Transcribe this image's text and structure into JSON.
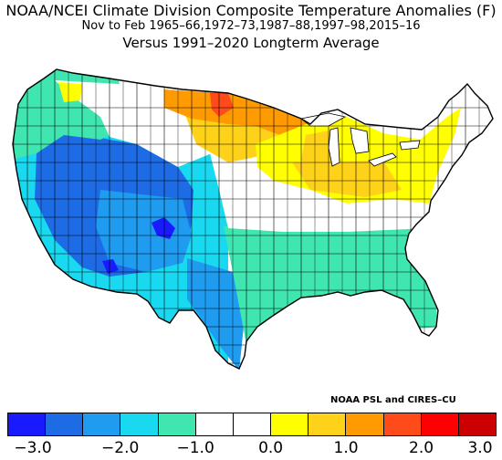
{
  "title": {
    "line1": "NOAA/NCEI Climate Division Composite Temperature Anomalies (F)",
    "line2": "Nov to Feb  1965–66,1972–73,1987–88,1997–98,2015–16",
    "line3": "Versus 1991–2020 Longterm Average"
  },
  "credit": "NOAA PSL and CIRES–CU",
  "legend": {
    "colors": [
      "#1a1aff",
      "#1e6be6",
      "#1f9bf0",
      "#19d9f0",
      "#40e6b0",
      "#ffffff",
      "#ffffff",
      "#ffff00",
      "#ffd21a",
      "#ff9a00",
      "#ff4a1a",
      "#ff0000",
      "#cc0000"
    ],
    "ticks": [
      "−3.0",
      "−2.0",
      "−1.0",
      "0.0",
      "1.0",
      "2.0",
      "3.0"
    ]
  },
  "regions": [
    {
      "name": "pacific-northwest-coast",
      "anomaly": -1.0,
      "color": "#40e6b0"
    },
    {
      "name": "california-great-basin",
      "anomaly": -2.0,
      "color": "#1e6be6"
    },
    {
      "name": "four-corners",
      "anomaly": -3.0,
      "color": "#1a1aff"
    },
    {
      "name": "southern-plains-texas",
      "anomaly": -1.5,
      "color": "#19d9f0"
    },
    {
      "name": "southeast",
      "anomaly": -0.7,
      "color": "#40e6b0"
    },
    {
      "name": "northern-plains",
      "anomaly": 1.5,
      "color": "#ffd21a"
    },
    {
      "name": "great-lakes-ohio-valley",
      "anomaly": 1.0,
      "color": "#ffff00"
    },
    {
      "name": "northern-minnesota",
      "anomaly": 2.3,
      "color": "#ff6a00"
    }
  ]
}
